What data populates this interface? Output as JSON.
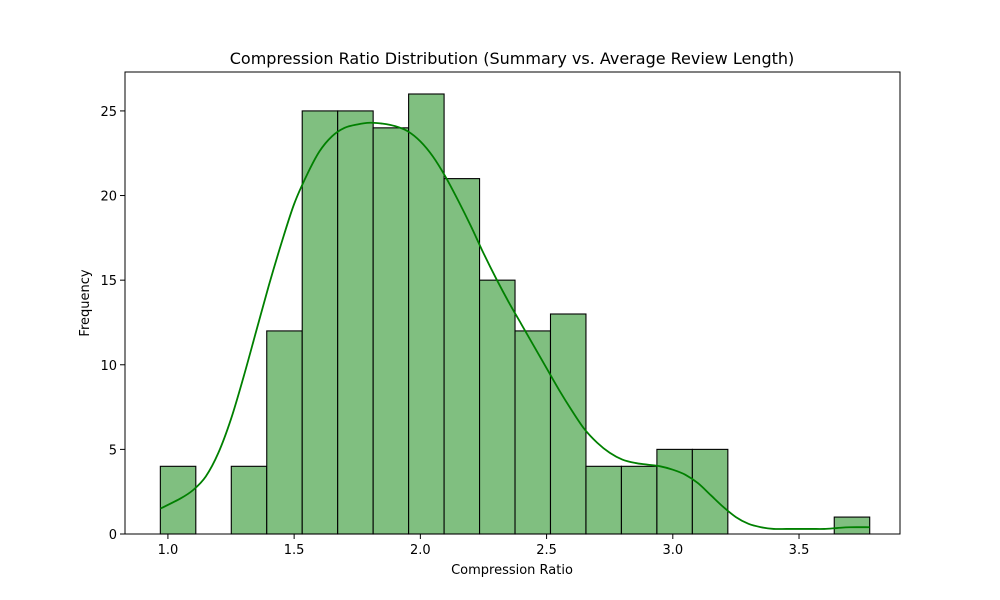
{
  "chart_data": {
    "type": "histogram",
    "title": "Compression Ratio Distribution (Summary vs. Average Review Length)",
    "xlabel": "Compression Ratio",
    "ylabel": "Frequency",
    "xlim": [
      0.83,
      3.9
    ],
    "ylim": [
      0,
      27.3
    ],
    "xticks": [
      1.0,
      1.5,
      2.0,
      2.5,
      3.0,
      3.5
    ],
    "xtick_labels": [
      "1.0",
      "1.5",
      "2.0",
      "2.5",
      "3.0",
      "3.5"
    ],
    "yticks": [
      0,
      5,
      10,
      15,
      20,
      25
    ],
    "ytick_labels": [
      "0",
      "5",
      "10",
      "15",
      "20",
      "25"
    ],
    "bin_edges": [
      0.97,
      1.1105,
      1.251,
      1.3915,
      1.532,
      1.6725,
      1.813,
      1.9535,
      2.094,
      2.2345,
      2.375,
      2.5155,
      2.656,
      2.7965,
      2.937,
      3.0775,
      3.218,
      3.3585,
      3.499,
      3.6395,
      3.78
    ],
    "counts": [
      4,
      0,
      4,
      12,
      25,
      25,
      24,
      26,
      21,
      15,
      12,
      13,
      4,
      4,
      5,
      5,
      0,
      0,
      0,
      1
    ],
    "kde": {
      "x": [
        0.97,
        1.05,
        1.1,
        1.15,
        1.2,
        1.25,
        1.3,
        1.35,
        1.4,
        1.45,
        1.5,
        1.55,
        1.6,
        1.65,
        1.7,
        1.75,
        1.8,
        1.85,
        1.9,
        1.95,
        2.0,
        2.05,
        2.1,
        2.15,
        2.2,
        2.25,
        2.3,
        2.35,
        2.4,
        2.45,
        2.5,
        2.55,
        2.6,
        2.65,
        2.7,
        2.75,
        2.8,
        2.85,
        2.9,
        2.95,
        3.0,
        3.05,
        3.1,
        3.15,
        3.2,
        3.25,
        3.3,
        3.35,
        3.4,
        3.45,
        3.5,
        3.55,
        3.6,
        3.65,
        3.7,
        3.78
      ],
      "y": [
        1.5,
        2.1,
        2.6,
        3.4,
        4.8,
        6.8,
        9.3,
        12.0,
        14.7,
        17.2,
        19.5,
        21.2,
        22.6,
        23.5,
        24.0,
        24.2,
        24.3,
        24.25,
        24.1,
        23.8,
        23.2,
        22.3,
        21.1,
        19.7,
        18.2,
        16.6,
        15.1,
        13.7,
        12.4,
        11.1,
        9.8,
        8.5,
        7.3,
        6.2,
        5.4,
        4.8,
        4.4,
        4.2,
        4.1,
        4.0,
        3.8,
        3.5,
        3.0,
        2.3,
        1.6,
        1.0,
        0.6,
        0.4,
        0.3,
        0.3,
        0.3,
        0.3,
        0.3,
        0.35,
        0.4,
        0.4
      ]
    },
    "colors": {
      "bar_fill": "#80bf80",
      "bar_edge": "#000000",
      "kde_line": "#008000"
    },
    "grid": false,
    "legend": "none"
  }
}
